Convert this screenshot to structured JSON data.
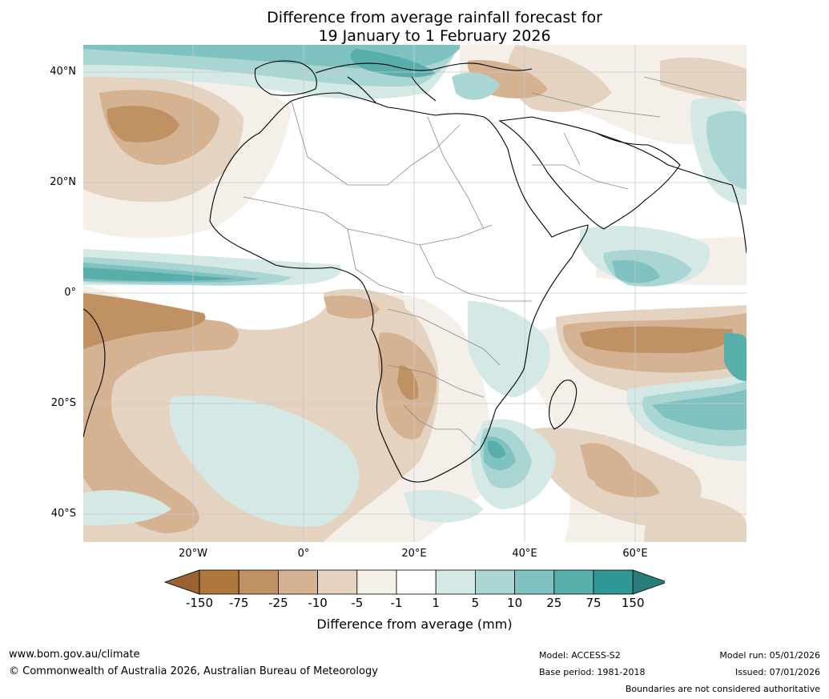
{
  "title": {
    "line1": "Difference from average rainfall forecast for",
    "line2": "19 January to 1 February 2026"
  },
  "axes": {
    "lat_labels": [
      "40°N",
      "20°N",
      "0°",
      "20°S",
      "40°S"
    ],
    "lon_labels": [
      "20°W",
      "0°",
      "20°E",
      "40°E",
      "60°E"
    ]
  },
  "colorbar": {
    "ticks": [
      "-150",
      "-75",
      "-25",
      "-10",
      "-5",
      "-1",
      "1",
      "5",
      "10",
      "25",
      "75",
      "150"
    ],
    "colors": [
      "#9a6230",
      "#ad773d",
      "#c09163",
      "#d5b292",
      "#e5d3c1",
      "#f4efe9",
      "#ffffff",
      "#d4e8e6",
      "#a9d5d3",
      "#80c2c0",
      "#57aeab",
      "#2f9894",
      "#277d7a"
    ],
    "label": "Difference from average (mm)"
  },
  "footer": {
    "website": "www.bom.gov.au/climate",
    "copyright": "© Commonwealth of Australia 2026, Australian Bureau of Meteorology",
    "model": "Model: ACCESS-S2",
    "base_period": "Base period: 1981-2018",
    "model_run": "Model run: 05/01/2026",
    "issued": "Issued: 07/01/2026",
    "disclaimer": "Boundaries are not considered authoritative"
  }
}
